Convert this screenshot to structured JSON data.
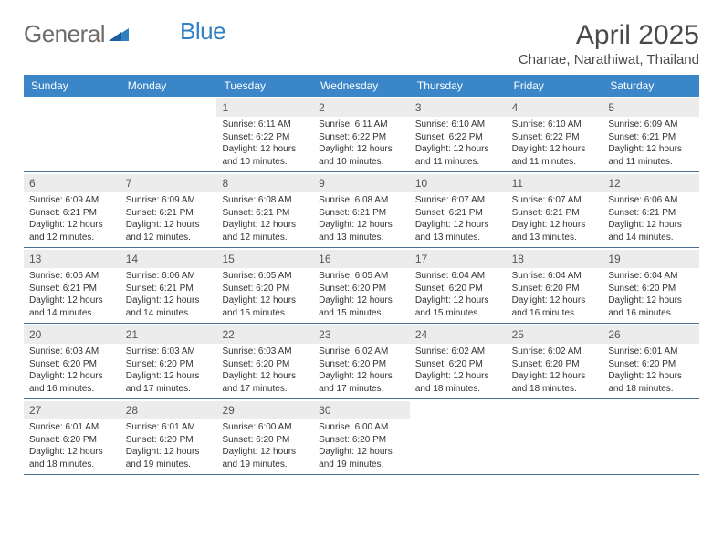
{
  "logo": {
    "text_a": "General",
    "text_b": "Blue"
  },
  "header": {
    "month_title": "April 2025",
    "location": "Chanae, Narathiwat, Thailand"
  },
  "colors": {
    "header_bg": "#3a86c8",
    "header_text": "#ffffff",
    "daynum_bg": "#ececec",
    "week_border": "#4a6f92",
    "logo_gray": "#6d6d6d",
    "logo_blue": "#2f7fc1"
  },
  "layout": {
    "columns": 7,
    "rows": 5,
    "leading_blanks": 2
  },
  "weekdays": [
    "Sunday",
    "Monday",
    "Tuesday",
    "Wednesday",
    "Thursday",
    "Friday",
    "Saturday"
  ],
  "days": [
    {
      "n": 1,
      "sr": "Sunrise: 6:11 AM",
      "ss": "Sunset: 6:22 PM",
      "dl": "Daylight: 12 hours and 10 minutes."
    },
    {
      "n": 2,
      "sr": "Sunrise: 6:11 AM",
      "ss": "Sunset: 6:22 PM",
      "dl": "Daylight: 12 hours and 10 minutes."
    },
    {
      "n": 3,
      "sr": "Sunrise: 6:10 AM",
      "ss": "Sunset: 6:22 PM",
      "dl": "Daylight: 12 hours and 11 minutes."
    },
    {
      "n": 4,
      "sr": "Sunrise: 6:10 AM",
      "ss": "Sunset: 6:22 PM",
      "dl": "Daylight: 12 hours and 11 minutes."
    },
    {
      "n": 5,
      "sr": "Sunrise: 6:09 AM",
      "ss": "Sunset: 6:21 PM",
      "dl": "Daylight: 12 hours and 11 minutes."
    },
    {
      "n": 6,
      "sr": "Sunrise: 6:09 AM",
      "ss": "Sunset: 6:21 PM",
      "dl": "Daylight: 12 hours and 12 minutes."
    },
    {
      "n": 7,
      "sr": "Sunrise: 6:09 AM",
      "ss": "Sunset: 6:21 PM",
      "dl": "Daylight: 12 hours and 12 minutes."
    },
    {
      "n": 8,
      "sr": "Sunrise: 6:08 AM",
      "ss": "Sunset: 6:21 PM",
      "dl": "Daylight: 12 hours and 12 minutes."
    },
    {
      "n": 9,
      "sr": "Sunrise: 6:08 AM",
      "ss": "Sunset: 6:21 PM",
      "dl": "Daylight: 12 hours and 13 minutes."
    },
    {
      "n": 10,
      "sr": "Sunrise: 6:07 AM",
      "ss": "Sunset: 6:21 PM",
      "dl": "Daylight: 12 hours and 13 minutes."
    },
    {
      "n": 11,
      "sr": "Sunrise: 6:07 AM",
      "ss": "Sunset: 6:21 PM",
      "dl": "Daylight: 12 hours and 13 minutes."
    },
    {
      "n": 12,
      "sr": "Sunrise: 6:06 AM",
      "ss": "Sunset: 6:21 PM",
      "dl": "Daylight: 12 hours and 14 minutes."
    },
    {
      "n": 13,
      "sr": "Sunrise: 6:06 AM",
      "ss": "Sunset: 6:21 PM",
      "dl": "Daylight: 12 hours and 14 minutes."
    },
    {
      "n": 14,
      "sr": "Sunrise: 6:06 AM",
      "ss": "Sunset: 6:21 PM",
      "dl": "Daylight: 12 hours and 14 minutes."
    },
    {
      "n": 15,
      "sr": "Sunrise: 6:05 AM",
      "ss": "Sunset: 6:20 PM",
      "dl": "Daylight: 12 hours and 15 minutes."
    },
    {
      "n": 16,
      "sr": "Sunrise: 6:05 AM",
      "ss": "Sunset: 6:20 PM",
      "dl": "Daylight: 12 hours and 15 minutes."
    },
    {
      "n": 17,
      "sr": "Sunrise: 6:04 AM",
      "ss": "Sunset: 6:20 PM",
      "dl": "Daylight: 12 hours and 15 minutes."
    },
    {
      "n": 18,
      "sr": "Sunrise: 6:04 AM",
      "ss": "Sunset: 6:20 PM",
      "dl": "Daylight: 12 hours and 16 minutes."
    },
    {
      "n": 19,
      "sr": "Sunrise: 6:04 AM",
      "ss": "Sunset: 6:20 PM",
      "dl": "Daylight: 12 hours and 16 minutes."
    },
    {
      "n": 20,
      "sr": "Sunrise: 6:03 AM",
      "ss": "Sunset: 6:20 PM",
      "dl": "Daylight: 12 hours and 16 minutes."
    },
    {
      "n": 21,
      "sr": "Sunrise: 6:03 AM",
      "ss": "Sunset: 6:20 PM",
      "dl": "Daylight: 12 hours and 17 minutes."
    },
    {
      "n": 22,
      "sr": "Sunrise: 6:03 AM",
      "ss": "Sunset: 6:20 PM",
      "dl": "Daylight: 12 hours and 17 minutes."
    },
    {
      "n": 23,
      "sr": "Sunrise: 6:02 AM",
      "ss": "Sunset: 6:20 PM",
      "dl": "Daylight: 12 hours and 17 minutes."
    },
    {
      "n": 24,
      "sr": "Sunrise: 6:02 AM",
      "ss": "Sunset: 6:20 PM",
      "dl": "Daylight: 12 hours and 18 minutes."
    },
    {
      "n": 25,
      "sr": "Sunrise: 6:02 AM",
      "ss": "Sunset: 6:20 PM",
      "dl": "Daylight: 12 hours and 18 minutes."
    },
    {
      "n": 26,
      "sr": "Sunrise: 6:01 AM",
      "ss": "Sunset: 6:20 PM",
      "dl": "Daylight: 12 hours and 18 minutes."
    },
    {
      "n": 27,
      "sr": "Sunrise: 6:01 AM",
      "ss": "Sunset: 6:20 PM",
      "dl": "Daylight: 12 hours and 18 minutes."
    },
    {
      "n": 28,
      "sr": "Sunrise: 6:01 AM",
      "ss": "Sunset: 6:20 PM",
      "dl": "Daylight: 12 hours and 19 minutes."
    },
    {
      "n": 29,
      "sr": "Sunrise: 6:00 AM",
      "ss": "Sunset: 6:20 PM",
      "dl": "Daylight: 12 hours and 19 minutes."
    },
    {
      "n": 30,
      "sr": "Sunrise: 6:00 AM",
      "ss": "Sunset: 6:20 PM",
      "dl": "Daylight: 12 hours and 19 minutes."
    }
  ]
}
